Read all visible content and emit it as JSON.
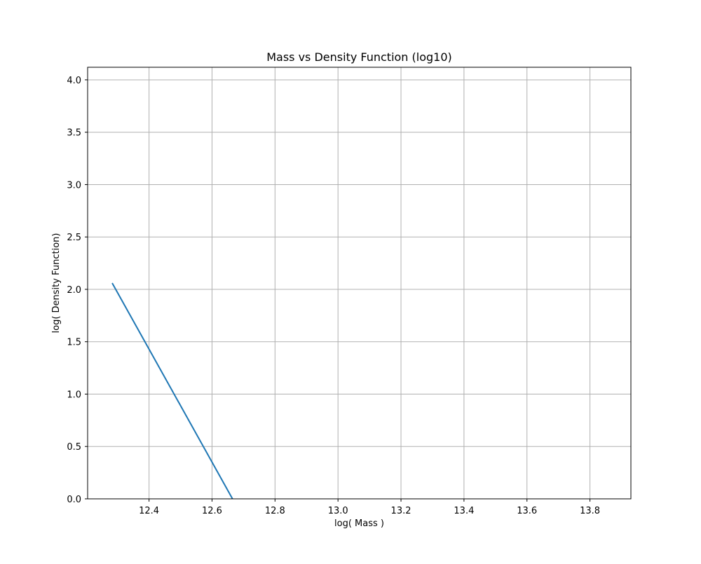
{
  "chart_data": {
    "type": "line",
    "title": "Mass vs Density Function (log10)",
    "xlabel": "log( Mass )",
    "ylabel": "log( Density Function)",
    "xlim": [
      12.205,
      13.93
    ],
    "ylim": [
      0.0,
      4.12
    ],
    "xticks": [
      12.4,
      12.6,
      12.8,
      13.0,
      13.2,
      13.4,
      13.6,
      13.8
    ],
    "xtick_labels": [
      "12.4",
      "12.6",
      "12.8",
      "13.0",
      "13.2",
      "13.4",
      "13.6",
      "13.8"
    ],
    "yticks": [
      0.0,
      0.5,
      1.0,
      1.5,
      2.0,
      2.5,
      3.0,
      3.5,
      4.0
    ],
    "ytick_labels": [
      "0.0",
      "0.5",
      "1.0",
      "1.5",
      "2.0",
      "2.5",
      "3.0",
      "3.5",
      "4.0"
    ],
    "grid": true,
    "series": [
      {
        "color": "#1f77b4",
        "x": [
          12.283,
          12.665
        ],
        "y": [
          2.06,
          0.0
        ]
      }
    ]
  }
}
